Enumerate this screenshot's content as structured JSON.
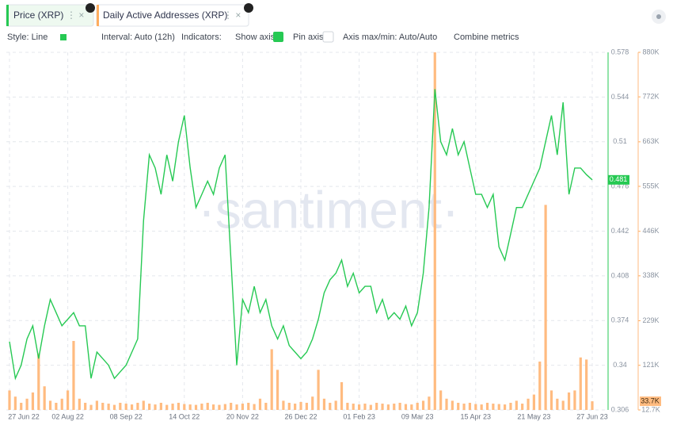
{
  "toolbar": {
    "style": "Style: Line",
    "interval": "Interval: Auto (12h)",
    "indicators": "Indicators:",
    "show_axis": "Show axis",
    "pin_axis": "Pin axis",
    "axis_range": "Axis max/min: Auto/Auto",
    "combine": "Combine metrics"
  },
  "chart_data": {
    "type": "line",
    "watermark": "·santiment·",
    "categories": [
      "27 Jun 22",
      null,
      null,
      null,
      null,
      null,
      null,
      null,
      null,
      null,
      "02 Aug 22",
      null,
      null,
      null,
      null,
      null,
      null,
      null,
      null,
      null,
      "08 Sep 22",
      null,
      null,
      null,
      null,
      null,
      null,
      null,
      null,
      null,
      "14 Oct 22",
      null,
      null,
      null,
      null,
      null,
      null,
      null,
      null,
      null,
      "20 Nov 22",
      null,
      null,
      null,
      null,
      null,
      null,
      null,
      null,
      null,
      "26 Dec 22",
      null,
      null,
      null,
      null,
      null,
      null,
      null,
      null,
      null,
      "01 Feb 23",
      null,
      null,
      null,
      null,
      null,
      null,
      null,
      null,
      null,
      "09 Mar 23",
      null,
      null,
      null,
      null,
      null,
      null,
      null,
      null,
      null,
      "15 Apr 23",
      null,
      null,
      null,
      null,
      null,
      null,
      null,
      null,
      null,
      "21 May 23",
      null,
      null,
      null,
      null,
      null,
      null,
      null,
      null,
      null,
      "27 Jun 23"
    ],
    "series": [
      {
        "name": "Price (XRP)",
        "type": "line",
        "color": "#26c953",
        "axis": "y",
        "values": [
          0.358,
          0.33,
          0.34,
          0.36,
          0.37,
          0.345,
          0.37,
          0.39,
          0.38,
          0.37,
          0.375,
          0.38,
          0.37,
          0.37,
          0.33,
          0.35,
          0.345,
          0.34,
          0.33,
          0.335,
          0.34,
          0.35,
          0.36,
          0.45,
          0.5,
          0.49,
          0.47,
          0.5,
          0.48,
          0.51,
          0.53,
          0.49,
          0.46,
          0.47,
          0.48,
          0.47,
          0.49,
          0.5,
          0.42,
          0.34,
          0.39,
          0.38,
          0.4,
          0.38,
          0.39,
          0.37,
          0.36,
          0.37,
          0.355,
          0.35,
          0.345,
          0.35,
          0.36,
          0.375,
          0.395,
          0.405,
          0.41,
          0.42,
          0.4,
          0.41,
          0.395,
          0.4,
          0.4,
          0.38,
          0.39,
          0.375,
          0.38,
          0.375,
          0.385,
          0.37,
          0.38,
          0.41,
          0.46,
          0.55,
          0.51,
          0.5,
          0.52,
          0.5,
          0.51,
          0.49,
          0.47,
          0.47,
          0.46,
          0.47,
          0.43,
          0.42,
          0.44,
          0.46,
          0.46,
          0.47,
          0.48,
          0.49,
          0.51,
          0.53,
          0.5,
          0.54,
          0.47,
          0.49,
          0.49,
          0.485,
          0.481
        ]
      },
      {
        "name": "Daily Active Addresses (XRP)",
        "type": "bar",
        "color": "#ffbb80",
        "axis": "y2",
        "values": [
          60000,
          45000,
          30000,
          40000,
          55000,
          150000,
          70000,
          35000,
          30000,
          40000,
          60000,
          180000,
          40000,
          30000,
          25000,
          35000,
          30000,
          28000,
          25000,
          30000,
          28000,
          26000,
          30000,
          35000,
          28000,
          26000,
          30000,
          25000,
          28000,
          30000,
          27000,
          26000,
          25000,
          28000,
          30000,
          26000,
          25000,
          27000,
          30000,
          26000,
          28000,
          30000,
          27000,
          40000,
          30000,
          160000,
          110000,
          35000,
          30000,
          28000,
          32000,
          30000,
          45000,
          110000,
          40000,
          30000,
          35000,
          80000,
          30000,
          28000,
          26000,
          28000,
          25000,
          30000,
          28000,
          26000,
          28000,
          30000,
          27000,
          26000,
          30000,
          35000,
          45000,
          880000,
          60000,
          40000,
          35000,
          30000,
          28000,
          30000,
          27000,
          26000,
          30000,
          28000,
          27000,
          26000,
          30000,
          35000,
          28000,
          40000,
          50000,
          130000,
          510000,
          60000,
          40000,
          35000,
          55000,
          60000,
          140000,
          135000,
          33700
        ]
      }
    ],
    "ylim": [
      0.306,
      0.578
    ],
    "yticks": [
      0.306,
      0.34,
      0.374,
      0.408,
      0.442,
      0.476,
      0.51,
      0.544,
      0.578
    ],
    "y2lim": [
      12700,
      880000
    ],
    "y2ticks": [
      {
        "value": 12700,
        "label": "12.7K"
      },
      {
        "value": 121000,
        "label": "121K"
      },
      {
        "value": 229000,
        "label": "229K"
      },
      {
        "value": 338000,
        "label": "338K"
      },
      {
        "value": 446000,
        "label": "446K"
      },
      {
        "value": 555000,
        "label": "555K"
      },
      {
        "value": 663000,
        "label": "663K"
      },
      {
        "value": 772000,
        "label": "772K"
      },
      {
        "value": 880000,
        "label": "880K"
      }
    ],
    "annotations": [
      {
        "text": "0.481",
        "value": 0.481,
        "axis": "y"
      },
      {
        "text": "33.7K",
        "value": 33700,
        "axis": "y2"
      }
    ],
    "grid": true
  }
}
